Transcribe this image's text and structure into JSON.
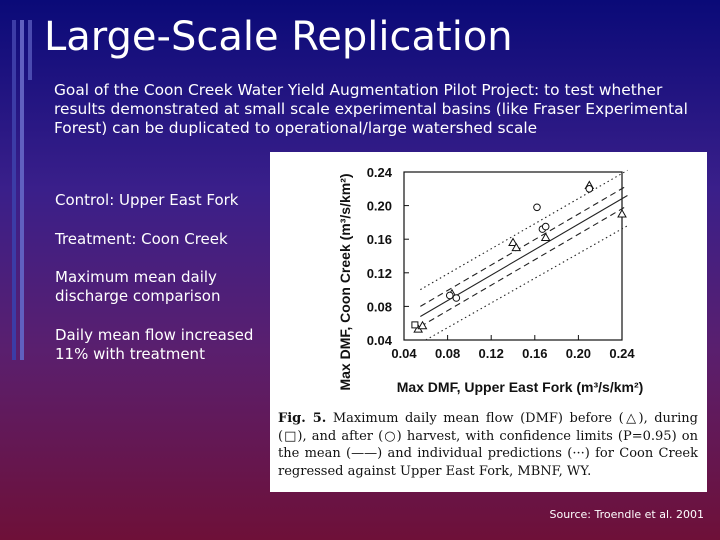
{
  "slide": {
    "title": "Large-Scale Replication",
    "goal": "Goal of the Coon Creek Water Yield Augmentation Pilot Project: to test whether results demonstrated at small scale experimental basins (like Fraser Experimental Forest) can be duplicated to operational/large watershed scale",
    "points": [
      "Control: Upper East Fork",
      "Treatment: Coon Creek",
      "Maximum mean daily discharge comparison",
      "Daily mean flow increased 11% with treatment"
    ],
    "source": "Source: Troendle et al. 2001"
  },
  "figure": {
    "caption_label": "Fig. 5.",
    "caption_text": "Maximum daily mean flow (DMF) before (△), during (□), and after (○) harvest, with confidence limits (P=0.95) on the mean (——) and individual predictions (···) for Coon Creek regressed against Upper East Fork, MBNF, WY."
  },
  "chart_data": {
    "type": "scatter",
    "xlabel": "Max DMF, Upper East Fork (m³/s/km²)",
    "ylabel": "Max DMF, Coon Creek (m³/s/km²)",
    "xlim": [
      0.04,
      0.24
    ],
    "ylim": [
      0.04,
      0.24
    ],
    "xticks": [
      "0.04",
      "0.08",
      "0.12",
      "0.16",
      "0.20",
      "0.24"
    ],
    "yticks": [
      "0.04",
      "0.08",
      "0.12",
      "0.16",
      "0.20",
      "0.24"
    ],
    "grid": false,
    "series": [
      {
        "marker": "triangle",
        "points": [
          [
            0.053,
            0.053
          ],
          [
            0.057,
            0.057
          ],
          [
            0.084,
            0.095
          ],
          [
            0.14,
            0.156
          ],
          [
            0.143,
            0.15
          ],
          [
            0.17,
            0.162
          ],
          [
            0.21,
            0.224
          ],
          [
            0.245,
            0.19
          ]
        ]
      },
      {
        "marker": "square",
        "points": [
          [
            0.05,
            0.058
          ]
        ]
      },
      {
        "marker": "circle",
        "points": [
          [
            0.082,
            0.093
          ],
          [
            0.088,
            0.09
          ],
          [
            0.162,
            0.198
          ],
          [
            0.167,
            0.172
          ],
          [
            0.17,
            0.175
          ],
          [
            0.21,
            0.22
          ]
        ]
      }
    ],
    "lines": [
      {
        "style": "solid",
        "points": [
          [
            0.055,
            0.068
          ],
          [
            0.245,
            0.212
          ]
        ]
      },
      {
        "style": "dashed",
        "points": [
          [
            0.055,
            0.08
          ],
          [
            0.245,
            0.224
          ]
        ]
      },
      {
        "style": "dashed",
        "points": [
          [
            0.055,
            0.056
          ],
          [
            0.245,
            0.2
          ]
        ]
      },
      {
        "style": "dotted",
        "points": [
          [
            0.055,
            0.1
          ],
          [
            0.245,
            0.242
          ]
        ]
      },
      {
        "style": "dotted",
        "points": [
          [
            0.06,
            0.04
          ],
          [
            0.245,
            0.176
          ]
        ]
      }
    ]
  }
}
